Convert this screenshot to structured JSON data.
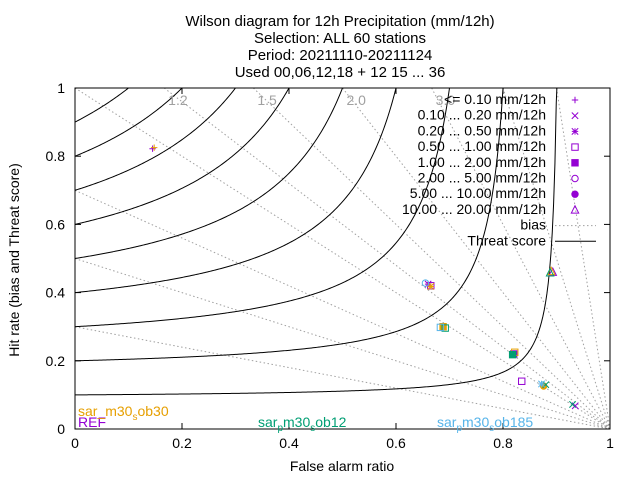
{
  "chart_data": {
    "type": "scatter",
    "title_lines": [
      "Wilson diagram  for 12h Precipitation (mm/12h)",
      "Selection: ALL     60 stations",
      "Period: 20211110-20211124",
      "Used 00,06,12,18 + 12 15 ... 36"
    ],
    "xlabel": "False alarm ratio",
    "ylabel": "Hit rate (bias and Threat score)",
    "xlim": [
      0,
      1
    ],
    "ylim": [
      0,
      1
    ],
    "xticks": [
      "0",
      "0.2",
      "0.4",
      "0.6",
      "0.8",
      "1"
    ],
    "yticks": [
      "0",
      "0.2",
      "0.4",
      "0.6",
      "0.8",
      "1"
    ],
    "bias_labels": [
      "1.2",
      "1.5",
      "2.0",
      "3.0"
    ],
    "bias_values": [
      0.3,
      0.5,
      0.7,
      1.0,
      1.2,
      1.5,
      2.0,
      3.0,
      5.0,
      10.0
    ],
    "threat_values": [
      0.1,
      0.2,
      0.3,
      0.4,
      0.5,
      0.6,
      0.7,
      0.8,
      0.9
    ],
    "classes": [
      {
        "label": "<= 0.10 mm/12h",
        "marker": "+"
      },
      {
        "label": "0.10 ... 0.20 mm/12h",
        "marker": "×"
      },
      {
        "label": "0.20 ... 0.50 mm/12h",
        "marker": "*"
      },
      {
        "label": "0.50 ... 1.00 mm/12h",
        "marker": "□"
      },
      {
        "label": "1.00 ... 2.00 mm/12h",
        "marker": "■"
      },
      {
        "label": "2.00 ... 5.00 mm/12h",
        "marker": "○"
      },
      {
        "label": "5.00 ... 10.00 mm/12h",
        "marker": "●"
      },
      {
        "label": "10.00 ... 20.00 mm/12h",
        "marker": "△"
      }
    ],
    "line_legend": {
      "bias": "bias",
      "threat": "Threat score"
    },
    "experiments": [
      {
        "name": "REF",
        "color": "#9400d3",
        "points": [
          {
            "cls": 0,
            "x": 0.145,
            "y": 0.822
          },
          {
            "cls": 2,
            "x": 0.66,
            "y": 0.425
          },
          {
            "cls": 3,
            "x": 0.665,
            "y": 0.42
          },
          {
            "cls": 4,
            "x": 0.82,
            "y": 0.22
          },
          {
            "cls": 3,
            "x": 0.835,
            "y": 0.14
          },
          {
            "cls": 1,
            "x": 0.935,
            "y": 0.068
          },
          {
            "cls": 7,
            "x": 0.893,
            "y": 0.46
          }
        ]
      },
      {
        "name": "sar_m30_sob30",
        "label_parts": [
          "sar_m30",
          "s",
          "ob30"
        ],
        "color": "#e69f00",
        "points": [
          {
            "cls": 0,
            "x": 0.148,
            "y": 0.825
          },
          {
            "cls": 2,
            "x": 0.665,
            "y": 0.418
          },
          {
            "cls": 4,
            "x": 0.688,
            "y": 0.3
          },
          {
            "cls": 3,
            "x": 0.822,
            "y": 0.225
          },
          {
            "cls": 6,
            "x": 0.876,
            "y": 0.126
          },
          {
            "cls": 7,
            "x": 0.89,
            "y": 0.462
          }
        ]
      },
      {
        "name": "sar_pm30_sob12",
        "label_parts": [
          "sar",
          "p",
          "m30",
          "s",
          "ob12"
        ],
        "color": "#009e73",
        "points": [
          {
            "cls": 3,
            "x": 0.692,
            "y": 0.296
          },
          {
            "cls": 4,
            "x": 0.818,
            "y": 0.218
          },
          {
            "cls": 1,
            "x": 0.88,
            "y": 0.13
          },
          {
            "cls": 1,
            "x": 0.93,
            "y": 0.072
          },
          {
            "cls": 7,
            "x": 0.888,
            "y": 0.458
          }
        ]
      },
      {
        "name": "sar_pm30_sob185",
        "label_parts": [
          "sar",
          "p",
          "m30",
          "s",
          "ob185"
        ],
        "color": "#56b4e9",
        "points": [
          {
            "cls": 3,
            "x": 0.683,
            "y": 0.298
          },
          {
            "cls": 5,
            "x": 0.655,
            "y": 0.428
          },
          {
            "cls": 2,
            "x": 0.872,
            "y": 0.132
          }
        ]
      }
    ]
  }
}
